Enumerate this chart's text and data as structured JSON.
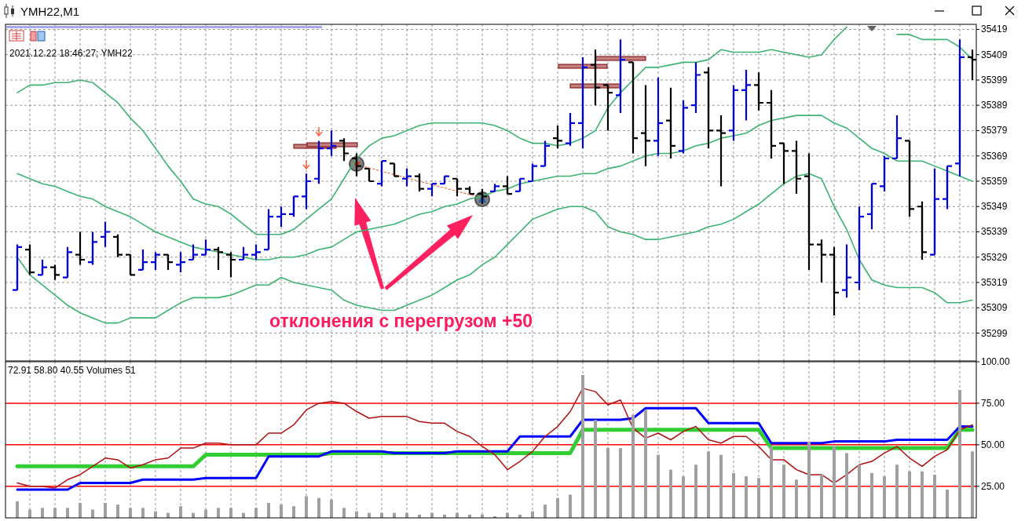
{
  "chart_data": [
    {
      "type": "candlestick",
      "title": "YMH22,M1",
      "categories": [
        null,
        null,
        null,
        null,
        null,
        null,
        null,
        null,
        null,
        null,
        null,
        null,
        null,
        null,
        null,
        null,
        null,
        null,
        null,
        null,
        null,
        null,
        null,
        null,
        null,
        null,
        null,
        null,
        null,
        null,
        null,
        null,
        null,
        null,
        null,
        null,
        null,
        null,
        null,
        null,
        null,
        null,
        null,
        null,
        null,
        null,
        null,
        null,
        null,
        null,
        null,
        null,
        null,
        null,
        null,
        null,
        null,
        null,
        null,
        null,
        null,
        null,
        null,
        null,
        null,
        null,
        null,
        null,
        null,
        null,
        null,
        null,
        null,
        null,
        null,
        null,
        null
      ],
      "ohlc": [
        [
          35316,
          35334,
          35316,
          35333
        ],
        [
          35332,
          35334,
          35322,
          35323
        ],
        [
          35322,
          35328,
          35322,
          35325
        ],
        [
          35325,
          35326,
          35320,
          35322
        ],
        [
          35321,
          35333,
          35321,
          35331
        ],
        [
          35330,
          35339,
          35326,
          35328
        ],
        [
          35327,
          35339,
          35326,
          35335
        ],
        [
          35337,
          35343,
          35333,
          35339
        ],
        [
          35337,
          35338,
          35329,
          35330
        ],
        [
          35330,
          35330,
          35322,
          35322
        ],
        [
          35324,
          35332,
          35324,
          35327
        ],
        [
          35327,
          35331,
          35324,
          35330
        ],
        [
          35330,
          35330,
          35324,
          35327
        ],
        [
          35326,
          35331,
          35323,
          35327
        ],
        [
          35328,
          35334,
          35328,
          35330
        ],
        [
          35330,
          35336,
          35330,
          35332
        ],
        [
          35332,
          35333,
          35324,
          35331
        ],
        [
          35330,
          35331,
          35321,
          35328
        ],
        [
          35328,
          35333,
          35328,
          35330
        ],
        [
          35330,
          35334,
          35328,
          35331
        ],
        [
          35332,
          35348,
          35332,
          35345
        ],
        [
          35345,
          35349,
          35341,
          35346
        ],
        [
          35346,
          35353,
          35345,
          35353
        ],
        [
          35353,
          35362,
          35348,
          35359
        ],
        [
          35360,
          35375,
          35358,
          35372
        ],
        [
          35372,
          35379,
          35369,
          35373
        ],
        [
          35375,
          35376,
          35367,
          35370
        ],
        [
          35368,
          35370,
          35361,
          35365
        ],
        [
          35364,
          35364,
          35359,
          35359
        ],
        [
          35358,
          35367,
          35357,
          35367
        ],
        [
          35366,
          35366,
          35361,
          35361
        ],
        [
          35360,
          35364,
          35357,
          35361
        ],
        [
          35361,
          35362,
          35355,
          35356
        ],
        [
          35356,
          35358,
          35353,
          35358
        ],
        [
          35358,
          35361,
          35358,
          35361
        ],
        [
          35360,
          35360,
          35353,
          35356
        ],
        [
          35356,
          35357,
          35354,
          35354
        ],
        [
          35354,
          35356,
          35350,
          35353
        ],
        [
          35355,
          35358,
          35355,
          35357
        ],
        [
          35357,
          35361,
          35354,
          35354
        ],
        [
          35355,
          35360,
          35355,
          35360
        ],
        [
          35359,
          35366,
          35359,
          35365
        ],
        [
          35365,
          35375,
          35365,
          35373
        ],
        [
          35376,
          35381,
          35372,
          35375
        ],
        [
          35374,
          35386,
          35373,
          35382
        ],
        [
          35382,
          35408,
          35372,
          35404
        ],
        [
          35405,
          35411,
          35389,
          35396
        ],
        [
          35397,
          35397,
          35379,
          35394
        ],
        [
          35393,
          35415,
          35386,
          35407
        ],
        [
          35406,
          35406,
          35370,
          35376
        ],
        [
          35378,
          35397,
          35365,
          35375
        ],
        [
          35375,
          35400,
          35369,
          35382
        ],
        [
          35383,
          35396,
          35368,
          35373
        ],
        [
          35371,
          35391,
          35370,
          35388
        ],
        [
          35389,
          35406,
          35386,
          35401
        ],
        [
          35402,
          35404,
          35372,
          35379
        ],
        [
          35379,
          35385,
          35357,
          35378
        ],
        [
          35379,
          35397,
          35375,
          35395
        ],
        [
          35395,
          35403,
          35383,
          35397
        ],
        [
          35397,
          35402,
          35387,
          35390
        ],
        [
          35390,
          35395,
          35368,
          35373
        ],
        [
          35374,
          35374,
          35358,
          35371
        ],
        [
          35371,
          35375,
          35354,
          35360
        ],
        [
          35361,
          35370,
          35324,
          35334
        ],
        [
          35334,
          35336,
          35319,
          35330
        ],
        [
          35330,
          35333,
          35306,
          35315
        ],
        [
          35316,
          35334,
          35313,
          35321
        ],
        [
          35319,
          35349,
          35316,
          35345
        ],
        [
          35346,
          35358,
          35340,
          35358
        ],
        [
          35357,
          35369,
          35355,
          35368
        ],
        [
          35368,
          35385,
          35368,
          35376
        ],
        [
          35375,
          35375,
          35345,
          35348
        ],
        [
          35349,
          35351,
          35328,
          35331
        ],
        [
          35330,
          35364,
          35330,
          35352
        ],
        [
          35352,
          35365,
          35348,
          35365
        ],
        [
          35366,
          35415,
          35361,
          35408
        ],
        [
          35408,
          35411,
          35399,
          35407
        ]
      ],
      "colors": [
        "#0000dd",
        "#000000",
        "#0000dd",
        "#000000",
        "#0000dd",
        "#000000",
        "#0000dd",
        "#0000dd",
        "#000000",
        "#000000",
        "#0000dd",
        "#0000dd",
        "#000000",
        "#0000dd",
        "#0000dd",
        "#0000dd",
        "#000000",
        "#000000",
        "#0000dd",
        "#0000dd",
        "#0000dd",
        "#0000dd",
        "#0000dd",
        "#0000dd",
        "#0000dd",
        "#0000dd",
        "#000000",
        "#000000",
        "#000000",
        "#0000dd",
        "#000000",
        "#0000dd",
        "#000000",
        "#0000dd",
        "#0000dd",
        "#000000",
        "#000000",
        "#000000",
        "#0000dd",
        "#000000",
        "#0000dd",
        "#0000dd",
        "#0000dd",
        "#000000",
        "#0000dd",
        "#0000dd",
        "#000000",
        "#000000",
        "#0000dd",
        "#000000",
        "#000000",
        "#0000dd",
        "#000000",
        "#0000dd",
        "#0000dd",
        "#000000",
        "#000000",
        "#0000dd",
        "#0000dd",
        "#000000",
        "#000000",
        "#000000",
        "#000000",
        "#000000",
        "#000000",
        "#000000",
        "#0000dd",
        "#0000dd",
        "#0000dd",
        "#0000dd",
        "#0000dd",
        "#000000",
        "#000000",
        "#0000dd",
        "#0000dd",
        "#0000dd",
        "#000000"
      ],
      "series": [
        {
          "type": "line",
          "color": "#3cb371",
          "values": [
            35394,
            35397,
            35397,
            35398,
            35398,
            35399,
            35398,
            35394,
            35390,
            35384,
            35379,
            35372,
            35365,
            35359,
            35352,
            35350,
            35349,
            35346,
            35342,
            35338,
            35338,
            35338,
            35340,
            35344,
            35348,
            35352,
            35360,
            35368,
            35373,
            35376,
            35377,
            35379,
            35381,
            35382,
            35382,
            35382,
            35382,
            35382,
            35381,
            35379,
            35376,
            35374,
            35374,
            35373,
            35374,
            35376,
            35379,
            35388,
            35394,
            35399,
            35404,
            35404,
            35405,
            35406,
            35406,
            35407,
            35411,
            35410,
            35410,
            35410,
            35411,
            35410,
            35409,
            35408,
            35409,
            35415,
            35420,
            null,
            null,
            null,
            35417,
            35417,
            35415,
            35415,
            35415,
            35412,
            35407
          ]
        },
        {
          "type": "line",
          "color": "#3cb371",
          "values": [
            35362,
            35360,
            35358,
            35357,
            35355,
            35353,
            35352,
            35349,
            35347,
            35345,
            35342,
            35339,
            35337,
            35335,
            35333,
            35332,
            35331,
            35330,
            35329,
            35328,
            35328,
            35329,
            35329,
            35330,
            35332,
            35333,
            35336,
            35339,
            35340,
            35341,
            35342,
            35344,
            35346,
            35347,
            35349,
            35350,
            35352,
            35353,
            35355,
            35356,
            35358,
            35359,
            35360,
            35361,
            35361,
            35362,
            35362,
            35364,
            35365,
            35367,
            35369,
            35370,
            35370,
            35371,
            35373,
            35374,
            35376,
            35377,
            35378,
            35381,
            35383,
            35384,
            35385,
            35385,
            35385,
            35382,
            35380,
            35376,
            35372,
            35370,
            35367,
            35367,
            35367,
            35365,
            35363,
            35361,
            35359
          ]
        },
        {
          "type": "line",
          "color": "#3cb371",
          "values": [
            35329,
            35322,
            35318,
            35314,
            35310,
            35307,
            35305,
            35303,
            35303,
            35305,
            35305,
            35305,
            35308,
            35311,
            35313,
            35313,
            35313,
            35314,
            35316,
            35318,
            35318,
            35321,
            35319,
            35318,
            35317,
            35316,
            35312,
            35310,
            35309,
            35308,
            35308,
            35310,
            35312,
            35314,
            35317,
            35320,
            35322,
            35326,
            35329,
            35334,
            35339,
            35344,
            35346,
            35348,
            35349,
            35349,
            35347,
            35341,
            35339,
            35338,
            35336,
            35336,
            35337,
            35338,
            35339,
            35341,
            35342,
            35344,
            35347,
            35350,
            35354,
            35358,
            35361,
            35362,
            35360,
            35349,
            35340,
            35328,
            35320,
            35318,
            35317,
            35317,
            35317,
            35315,
            35311,
            35311,
            35312
          ]
        }
      ],
      "ylim": [
        35288,
        35421
      ],
      "yticks": [
        35299,
        35309,
        35319,
        35329,
        35339,
        35349,
        35359,
        35369,
        35379,
        35389,
        35399,
        35409,
        35419
      ],
      "grid": true,
      "annotations": [
        "2021.12.22 18:46:27; YMH22",
        "отклонения с перегрузом +50"
      ]
    },
    {
      "type": "line",
      "categories": [
        null,
        null,
        null,
        null,
        null,
        null,
        null,
        null,
        null,
        null,
        null,
        null,
        null,
        null,
        null,
        null,
        null,
        null,
        null,
        null,
        null,
        null,
        null,
        null,
        null,
        null,
        null,
        null,
        null,
        null,
        null,
        null,
        null,
        null,
        null,
        null,
        null,
        null,
        null,
        null,
        null,
        null,
        null,
        null,
        null,
        null,
        null,
        null,
        null,
        null,
        null,
        null,
        null,
        null,
        null,
        null,
        null,
        null,
        null,
        null,
        null,
        null,
        null,
        null,
        null,
        null,
        null,
        null,
        null,
        null,
        null,
        null,
        null,
        null,
        null,
        null,
        null
      ],
      "series": [
        {
          "type": "bar",
          "color": "#a0a0a0",
          "values": [
            16,
            11,
            12,
            12,
            12,
            15,
            11,
            15,
            14,
            12,
            12,
            10,
            9,
            13,
            9,
            11,
            12,
            12,
            9,
            12,
            15,
            14,
            13,
            19,
            18,
            17,
            12,
            10,
            9,
            9,
            9,
            9,
            8,
            9,
            8,
            9,
            8,
            8,
            7,
            9,
            8,
            10,
            14,
            18,
            20,
            92,
            65,
            48,
            48,
            68,
            71,
            44,
            35,
            31,
            38,
            46,
            44,
            33,
            31,
            30,
            49,
            38,
            29,
            52,
            32,
            49,
            45,
            38,
            33,
            31,
            38,
            34,
            34,
            32,
            23,
            83,
            46
          ]
        },
        {
          "type": "line",
          "color": "#32cd32",
          "values": [
            37,
            37,
            37,
            37,
            37,
            37,
            37,
            37,
            37,
            37,
            37,
            37,
            37,
            37,
            37,
            44,
            44,
            44,
            44,
            44,
            44,
            44,
            44,
            44,
            44,
            45,
            45,
            45,
            45,
            45,
            45,
            45,
            45,
            45,
            45,
            45,
            45,
            45,
            45,
            45,
            45,
            45,
            45,
            45,
            45,
            59,
            59,
            59,
            59,
            59,
            59,
            59,
            59,
            59,
            59,
            59,
            59,
            59,
            59,
            59,
            48,
            48,
            48,
            48,
            48,
            48,
            48,
            48,
            48,
            48,
            48,
            48,
            48,
            48,
            48,
            59,
            59
          ]
        },
        {
          "type": "line",
          "color": "#0000ff",
          "values": [
            23,
            23,
            23,
            23,
            23,
            27,
            27,
            27,
            27,
            27,
            29,
            29,
            29,
            29,
            29,
            30,
            30,
            30,
            30,
            30,
            43,
            43,
            43,
            43,
            43,
            46,
            46,
            46,
            46,
            46,
            45,
            45,
            45,
            45,
            45,
            46,
            46,
            46,
            46,
            46,
            55,
            55,
            55,
            55,
            55,
            65,
            65,
            65,
            65,
            66,
            72,
            72,
            72,
            72,
            72,
            63,
            63,
            63,
            63,
            63,
            51,
            51,
            51,
            51,
            51,
            52,
            52,
            52,
            52,
            52,
            53,
            53,
            53,
            53,
            53,
            61,
            61
          ]
        },
        {
          "type": "line",
          "color": "#b01010",
          "values": [
            27,
            25,
            25,
            24,
            29,
            32,
            37,
            42,
            41,
            36,
            38,
            41,
            42,
            48,
            48,
            51,
            51,
            50,
            50,
            50,
            57,
            57,
            62,
            71,
            75,
            76,
            75,
            70,
            66,
            67,
            67,
            67,
            64,
            63,
            63,
            58,
            55,
            49,
            44,
            35,
            40,
            46,
            55,
            61,
            70,
            84,
            82,
            74,
            77,
            60,
            54,
            57,
            53,
            58,
            61,
            53,
            51,
            55,
            55,
            49,
            41,
            41,
            35,
            32,
            32,
            27,
            32,
            38,
            40,
            45,
            49,
            42,
            37,
            43,
            47,
            59,
            62
          ]
        }
      ],
      "ylim": [
        6,
        100
      ],
      "yticks": [
        {
          "value": 25,
          "label": "25.00"
        },
        {
          "value": 50,
          "label": "50.00"
        },
        {
          "value": 75,
          "label": "75.00"
        },
        {
          "value": 100,
          "label": "100.00"
        }
      ],
      "grid": "x",
      "ref_lines": [
        {
          "axis": "y",
          "value": 25,
          "color": "#ff0000"
        },
        {
          "axis": "y",
          "value": 50,
          "color": "#ff0000"
        },
        {
          "axis": "y",
          "value": 75,
          "color": "#ff0000"
        }
      ],
      "annotations": [
        "72.91 58.80 40.55 Volumes 51"
      ]
    }
  ]
}
